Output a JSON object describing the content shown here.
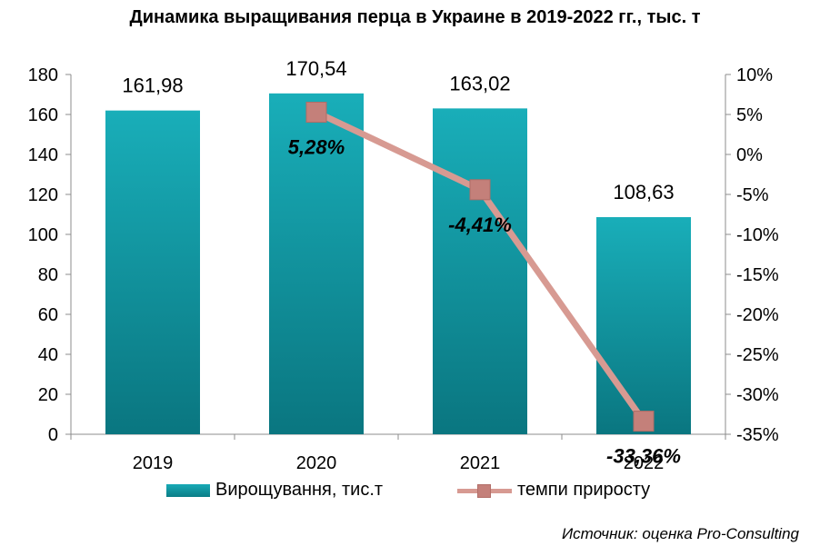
{
  "chart_data": {
    "type": "bar",
    "title": "Динамика выращивания перца в Украине в 2019-2022 гг., тыс. т",
    "categories": [
      "2019",
      "2020",
      "2021",
      "2022"
    ],
    "series": [
      {
        "name": "Вирощування, тис.т",
        "type": "bar",
        "axis": "left",
        "values": [
          161.98,
          170.54,
          163.02,
          108.63
        ],
        "labels": [
          "161,98",
          "170,54",
          "163,02",
          "108,63"
        ],
        "color": "#0f96a1"
      },
      {
        "name": "темпи приросту",
        "type": "line",
        "axis": "right",
        "values": [
          5.28,
          -4.41,
          -33.36
        ],
        "x": [
          "2020",
          "2021",
          "2022"
        ],
        "labels": [
          "5,28%",
          "-4,41%",
          "-33,36%"
        ],
        "color": "#d79a92"
      }
    ],
    "y_left": {
      "lim": [
        0,
        180
      ],
      "ticks": [
        "0",
        "20",
        "40",
        "60",
        "80",
        "100",
        "120",
        "140",
        "160",
        "180"
      ]
    },
    "y_right": {
      "lim": [
        -35,
        10
      ],
      "ticks": [
        "10%",
        "5%",
        "0%",
        "-5%",
        "-10%",
        "-15%",
        "-20%",
        "-25%",
        "-30%",
        "-35%"
      ]
    },
    "grid": false,
    "legend_position": "bottom"
  },
  "source": "Источник: оценка Pro-Consulting"
}
